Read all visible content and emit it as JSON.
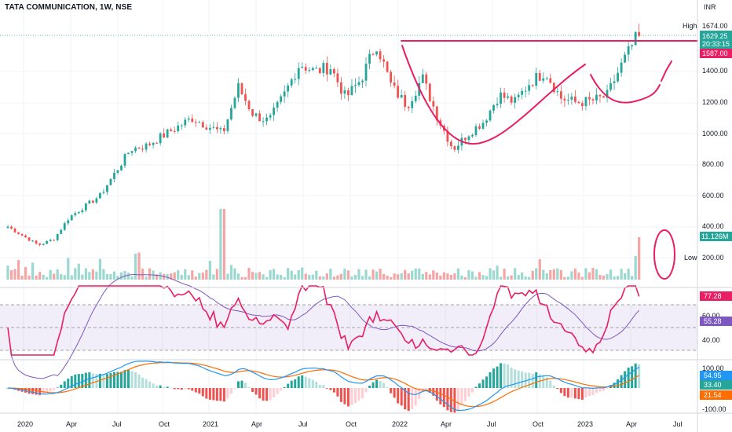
{
  "header": {
    "symbol_line": "TATA COMMUNICATION, 1W, NSE",
    "currency": "INR"
  },
  "price_axis": {
    "ticks": [
      "1400.00",
      "1200.00",
      "1000.00",
      "800.00",
      "600.00",
      "400.00",
      "200.00"
    ],
    "high_label": "High",
    "high_value": "1674.00",
    "last_price": "1629.25",
    "countdown": "20:33:15",
    "breakout_level": "1587.00",
    "volume_value": "11.126M",
    "low_label": "Low"
  },
  "rsi_axis": {
    "ticks": [
      "60.00",
      "40.00"
    ],
    "rsi_value": "77.28",
    "rsi_ma_value": "55.28"
  },
  "macd_axis": {
    "ticks": [
      "100.00",
      "-100.00"
    ],
    "macd_value": "54.95",
    "signal_value": "33.40",
    "hist_value": "21.54"
  },
  "time_axis": {
    "labels": [
      "2020",
      "Apr",
      "Jul",
      "Oct",
      "2021",
      "Apr",
      "Jul",
      "Oct",
      "2022",
      "Apr",
      "Jul",
      "Oct",
      "2023",
      "Apr",
      "Jul"
    ]
  },
  "colors": {
    "up": "#26a69a",
    "down": "#ef5350",
    "annotation": "#e91e63",
    "rsi_line": "#e91e63",
    "rsi_ma": "#7e57c2",
    "macd_line": "#2196f3",
    "signal_line": "#ff6d00"
  },
  "chart_data": {
    "type": "candlestick",
    "interval": "1W",
    "y_range": [
      0,
      1720
    ],
    "anchor_closes": [
      {
        "date": "2020-01",
        "close": 400
      },
      {
        "date": "2020-03",
        "close": 280
      },
      {
        "date": "2020-04",
        "close": 320
      },
      {
        "date": "2020-05",
        "close": 460
      },
      {
        "date": "2020-07",
        "close": 600
      },
      {
        "date": "2020-08",
        "close": 750
      },
      {
        "date": "2020-09",
        "close": 900
      },
      {
        "date": "2020-10",
        "close": 920
      },
      {
        "date": "2021-01",
        "close": 1100
      },
      {
        "date": "2021-03",
        "close": 1000
      },
      {
        "date": "2021-04",
        "close": 1300
      },
      {
        "date": "2021-05",
        "close": 1120
      },
      {
        "date": "2021-06",
        "close": 1080
      },
      {
        "date": "2021-07",
        "close": 1250
      },
      {
        "date": "2021-08",
        "close": 1450
      },
      {
        "date": "2021-09",
        "close": 1400
      },
      {
        "date": "2021-10",
        "close": 1430
      },
      {
        "date": "2021-11",
        "close": 1230
      },
      {
        "date": "2021-12",
        "close": 1350
      },
      {
        "date": "2022-01",
        "close": 1580
      },
      {
        "date": "2022-02",
        "close": 1300
      },
      {
        "date": "2022-03",
        "close": 1180
      },
      {
        "date": "2022-04",
        "close": 1360
      },
      {
        "date": "2022-05",
        "close": 1100
      },
      {
        "date": "2022-06",
        "close": 900
      },
      {
        "date": "2022-07",
        "close": 1000
      },
      {
        "date": "2022-08",
        "close": 1080
      },
      {
        "date": "2022-09",
        "close": 1250
      },
      {
        "date": "2022-10",
        "close": 1200
      },
      {
        "date": "2022-11",
        "close": 1330
      },
      {
        "date": "2022-12",
        "close": 1400
      },
      {
        "date": "2023-01",
        "close": 1230
      },
      {
        "date": "2023-02",
        "close": 1200
      },
      {
        "date": "2023-03",
        "close": 1210
      },
      {
        "date": "2023-04",
        "close": 1240
      },
      {
        "date": "2023-05",
        "close": 1450
      },
      {
        "date": "2023-06",
        "close": 1629
      }
    ],
    "volume_spikes": [
      {
        "date": "2021-03",
        "value": 500
      },
      {
        "date": "2023-06",
        "value": 300
      }
    ],
    "indicators": {
      "rsi": {
        "last": 77.28,
        "ma_last": 55.28,
        "bands": [
          70,
          30
        ]
      },
      "macd": {
        "macd": 54.95,
        "signal": 33.4,
        "histogram": 21.54
      }
    }
  }
}
